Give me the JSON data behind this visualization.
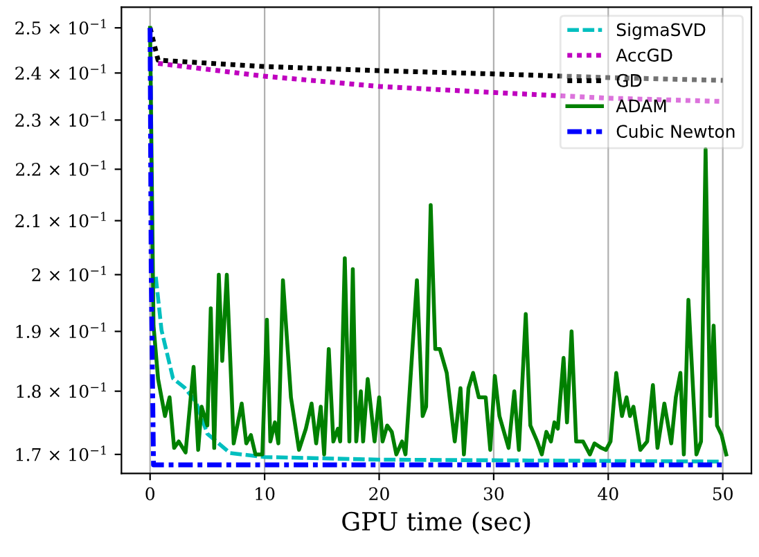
{
  "chart_data": {
    "type": "line",
    "xlabel": "GPU time (sec)",
    "xlim": [
      -2.5,
      52.5
    ],
    "xticks": [
      0,
      10,
      20,
      30,
      40,
      50
    ],
    "log": "y",
    "ylim": [
      0.1671,
      0.2547
    ],
    "yticks": [
      {
        "value": 0.17,
        "label": "1.7 × 10$^{−1}$"
      },
      {
        "value": 0.18,
        "label": "1.8 × 10$^{−1}$"
      },
      {
        "value": 0.19,
        "label": "1.9 × 10$^{−1}$"
      },
      {
        "value": 0.2,
        "label": "2 × 10$^{−1}$"
      },
      {
        "value": 0.21,
        "label": "2.1 × 10$^{−1}$"
      },
      {
        "value": 0.22,
        "label": "2.2 × 10$^{−1}$"
      },
      {
        "value": 0.23,
        "label": "2.3 × 10$^{−1}$"
      },
      {
        "value": 0.24,
        "label": "2.4 × 10$^{−1}$"
      },
      {
        "value": 0.25,
        "label": "2.5 × 10$^{−1}$"
      }
    ],
    "grid": "x",
    "legend": "top right",
    "series": [
      {
        "name": "SigmaSVD",
        "color": "#00bfbf",
        "line_style": "dashed",
        "x": [
          0.5,
          1,
          2,
          3,
          4,
          5,
          7,
          10,
          20,
          50
        ],
        "values": [
          0.1996,
          0.1902,
          0.1821,
          0.1806,
          0.1783,
          0.1732,
          0.1702,
          0.1696,
          0.1692,
          0.1689
        ]
      },
      {
        "name": "AccGD",
        "color": "#bf00bf",
        "line_style": "dotted",
        "x": [
          0.7,
          10,
          20,
          30,
          40,
          50
        ],
        "values": [
          0.2421,
          0.2393,
          0.2371,
          0.2358,
          0.2346,
          0.2339
        ]
      },
      {
        "name": "GD",
        "color": "#000000",
        "line_style": "dotted",
        "x": [
          0,
          0.7,
          10,
          20,
          30,
          40,
          50
        ],
        "values": [
          0.25,
          0.2428,
          0.2414,
          0.2405,
          0.2398,
          0.239,
          0.2384
        ]
      },
      {
        "name": "ADAM",
        "color": "#008000",
        "line_style": "solid",
        "x": [
          0,
          0.3,
          0.7,
          1.3,
          1.7,
          2.1,
          2.5,
          3.1,
          3.8,
          4.2,
          4.5,
          5.0,
          5.3,
          5.6,
          6.0,
          6.3,
          6.7,
          7.3,
          8.0,
          8.4,
          8.8,
          9.2,
          9.8,
          10.2,
          10.5,
          10.9,
          11.2,
          11.6,
          12.3,
          13.0,
          13.6,
          14.1,
          14.5,
          14.9,
          15.2,
          15.6,
          16.0,
          16.4,
          16.6,
          17.0,
          17.4,
          17.7,
          18.0,
          18.4,
          18.6,
          19.0,
          19.6,
          20.0,
          20.3,
          20.7,
          21.1,
          21.5,
          22.0,
          22.3,
          23.3,
          23.8,
          24.1,
          24.5,
          24.9,
          25.3,
          25.9,
          26.6,
          27.1,
          27.4,
          27.8,
          28.2,
          28.7,
          29.3,
          29.7,
          30.1,
          30.5,
          31.3,
          31.8,
          32.2,
          32.8,
          33.2,
          33.8,
          34.2,
          34.6,
          35.0,
          35.3,
          35.6,
          36.1,
          36.4,
          36.8,
          37.2,
          37.8,
          38.4,
          38.8,
          39.4,
          39.8,
          40.2,
          40.7,
          41.2,
          41.6,
          41.9,
          42.2,
          42.8,
          43.4,
          43.9,
          44.3,
          44.9,
          45.5,
          45.9,
          46.3,
          46.6,
          47.0,
          47.7,
          48.1,
          48.5,
          48.9,
          49.2,
          49.5,
          49.9,
          50.3
        ],
        "values": [
          0.25,
          0.191,
          0.182,
          0.176,
          0.179,
          0.171,
          0.172,
          0.1703,
          0.184,
          0.1707,
          0.1775,
          0.1745,
          0.194,
          0.171,
          0.2,
          0.185,
          0.2,
          0.1717,
          0.178,
          0.1717,
          0.173,
          0.17,
          0.17,
          0.192,
          0.172,
          0.175,
          0.1717,
          0.199,
          0.179,
          0.1707,
          0.174,
          0.178,
          0.1717,
          0.1775,
          0.17,
          0.187,
          0.172,
          0.174,
          0.172,
          0.203,
          0.172,
          0.201,
          0.172,
          0.18,
          0.172,
          0.182,
          0.172,
          0.179,
          0.172,
          0.1745,
          0.1735,
          0.17,
          0.172,
          0.17,
          0.199,
          0.176,
          0.1775,
          0.213,
          0.187,
          0.187,
          0.183,
          0.172,
          0.1805,
          0.17,
          0.1805,
          0.183,
          0.179,
          0.179,
          0.1707,
          0.1825,
          0.176,
          0.171,
          0.18,
          0.1707,
          0.193,
          0.1745,
          0.172,
          0.17,
          0.1735,
          0.172,
          0.175,
          0.174,
          0.1855,
          0.175,
          0.19,
          0.172,
          0.172,
          0.17,
          0.1717,
          0.171,
          0.1707,
          0.172,
          0.183,
          0.176,
          0.179,
          0.176,
          0.1775,
          0.1707,
          0.172,
          0.181,
          0.171,
          0.178,
          0.1717,
          0.179,
          0.183,
          0.17,
          0.1955,
          0.17,
          0.172,
          0.224,
          0.176,
          0.191,
          0.1745,
          0.173,
          0.17
        ]
      },
      {
        "name": "Cubic Newton",
        "color": "#0000ff",
        "line_style": "dashdot",
        "x": [
          0,
          0.1,
          0.3,
          50
        ],
        "values": [
          0.25,
          0.2,
          0.1684,
          0.1684
        ]
      }
    ]
  }
}
